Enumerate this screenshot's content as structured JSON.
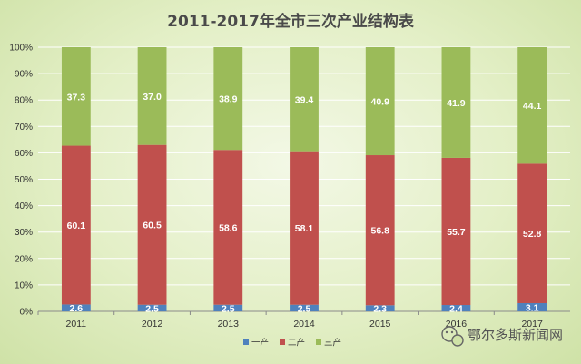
{
  "chart_data": {
    "type": "bar",
    "stacked": true,
    "title": "2011-2017年全市三次产业结构表",
    "categories": [
      "2011",
      "2012",
      "2013",
      "2014",
      "2015",
      "2016",
      "2017"
    ],
    "series": [
      {
        "name": "一产",
        "values": [
          2.6,
          2.5,
          2.5,
          2.5,
          2.3,
          2.4,
          3.1
        ],
        "color": "#4f81bd"
      },
      {
        "name": "二产",
        "values": [
          60.1,
          60.5,
          58.6,
          58.1,
          56.8,
          55.7,
          52.8
        ],
        "color": "#c0504d"
      },
      {
        "name": "三产",
        "values": [
          37.3,
          37.0,
          38.9,
          39.4,
          40.9,
          41.9,
          44.1
        ],
        "color": "#9bbb59"
      }
    ],
    "y_ticks": [
      "0%",
      "10%",
      "20%",
      "30%",
      "40%",
      "50%",
      "60%",
      "70%",
      "80%",
      "90%",
      "100%"
    ],
    "ylim": [
      0,
      100
    ],
    "grid": true,
    "legend_position": "bottom"
  },
  "watermark": {
    "text": "鄂尔多斯新闻网",
    "icon": "wechat-icon"
  }
}
